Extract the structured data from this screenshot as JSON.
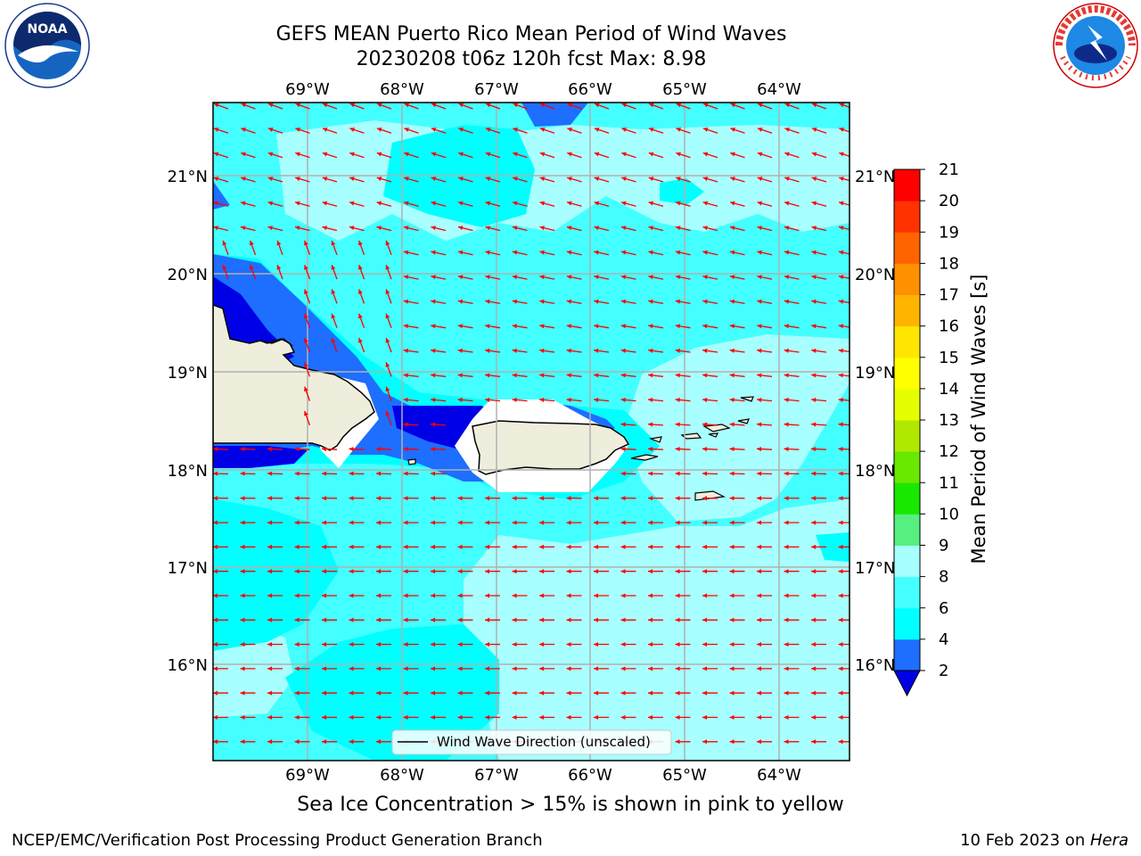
{
  "title_line1": "GEFS MEAN Puerto Rico Mean Period of Wind Waves",
  "title_line2": "20230208 t06z 120h fcst   Max: 8.98",
  "subtitle": "Sea Ice Concentration > 15% is shown in pink to yellow",
  "footer_left": "NCEP/EMC/Verification Post Processing Product Generation Branch",
  "footer_date": "10 Feb 2023 on ",
  "footer_machine": "Hera",
  "legend_label": "Wind Wave Direction (unscaled)",
  "colorbar_label": "Mean Period of Wind Waves [s]",
  "lon_ticks": [
    "69°W",
    "68°W",
    "67°W",
    "66°W",
    "65°W",
    "64°W"
  ],
  "lat_ticks": [
    "21°N",
    "20°N",
    "19°N",
    "18°N",
    "17°N",
    "16°N"
  ],
  "colorbar_ticks": [
    "2",
    "4",
    "6",
    "8",
    "9",
    "10",
    "11",
    "12",
    "13",
    "14",
    "15",
    "16",
    "17",
    "18",
    "19",
    "20",
    "21"
  ],
  "colorbar_colors": [
    "#0000e6",
    "#1e6eff",
    "#00ffff",
    "#44ffff",
    "#a8ffff",
    "#55f07f",
    "#18e800",
    "#69e800",
    "#b1e800",
    "#e6ff00",
    "#ffff00",
    "#ffe600",
    "#ffb400",
    "#ff9000",
    "#ff6400",
    "#ff3200",
    "#ff0000"
  ],
  "colors": {
    "land": "#efeedd",
    "arrow": "#ff0000",
    "grid": "#b0b0b0",
    "deep_blue": "#0000e6",
    "mid_blue": "#1e6eff",
    "cyan": "#00ffff",
    "light_cyan": "#44ffff",
    "pale_cyan": "#a8ffff"
  },
  "logos": {
    "noaa": "NOAA",
    "nws": "NATIONAL WEATHER SERVICE"
  }
}
